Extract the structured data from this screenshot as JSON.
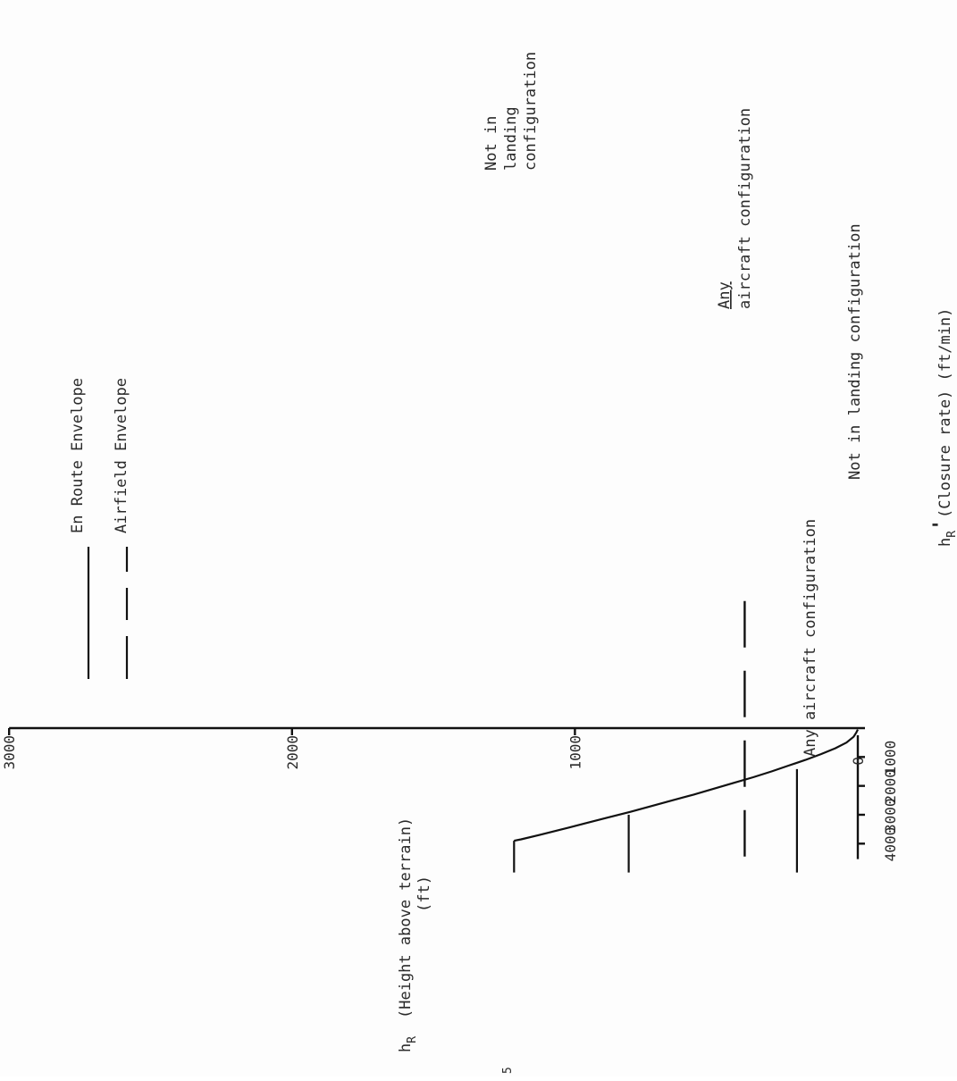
{
  "chart_data": {
    "type": "line",
    "orientation": "rotated 90 degrees counter-clockwise",
    "xlabel_symbol": "h",
    "xlabel_symbol_sub": "R",
    "xlabel_symbol_mark": "'",
    "xlabel": "(Closure rate) (ft/min)",
    "ylabel_symbol": "h",
    "ylabel_symbol_sub": "R",
    "ylabel_line1": "(Height above terrain)",
    "ylabel_line2": "(ft)",
    "x_ticks": [
      "1000",
      "2000",
      "3000",
      "4000"
    ],
    "y_ticks": [
      "0",
      "1000",
      "2000",
      "3000"
    ],
    "xlim": [
      0,
      5000
    ],
    "ylim": [
      0,
      3000
    ],
    "grid": false,
    "legend": [
      {
        "name": "En Route Envelope",
        "style": "solid"
      },
      {
        "name": "Airfield Envelope",
        "style": "dashed"
      }
    ],
    "series": [
      {
        "name": "En Route Envelope",
        "style": "solid",
        "segments": [
          {
            "x": [
              50,
              150,
              300,
              500,
              700,
              900,
              1100,
              1300,
              1500,
              1700,
              1900,
              2100,
              2300,
              2500,
              2700,
              2900,
              3100,
              3300,
              3500,
              3700,
              3850,
              3900
            ],
            "y": [
              0,
              5,
              15,
              40,
              80,
              130,
              185,
              245,
              305,
              370,
              440,
              510,
              580,
              655,
              730,
              805,
              885,
              965,
              1045,
              1125,
              1190,
              1215
            ]
          },
          {
            "x": [
              3900,
              5000
            ],
            "y": [
              1215,
              1215
            ]
          },
          {
            "x": [
              3000,
              5000
            ],
            "y": [
              810,
              810
            ]
          },
          {
            "x": [
              1420,
              5000
            ],
            "y": [
              215,
              215
            ]
          }
        ]
      },
      {
        "name": "Airfield Envelope",
        "style": "dashed",
        "segments": [
          {
            "x": [
              -4400,
              5000
            ],
            "y": [
              400,
              400
            ]
          }
        ]
      }
    ],
    "annotations": [
      {
        "lines": [
          "Not in",
          "landing",
          "configuration"
        ]
      },
      {
        "lines": [
          "Any",
          "aircraft configuration"
        ]
      },
      {
        "lines": [
          "Not in landing configuration"
        ]
      },
      {
        "lines": [
          "Any aircraft configuration"
        ]
      }
    ],
    "footer_mark": "5"
  }
}
